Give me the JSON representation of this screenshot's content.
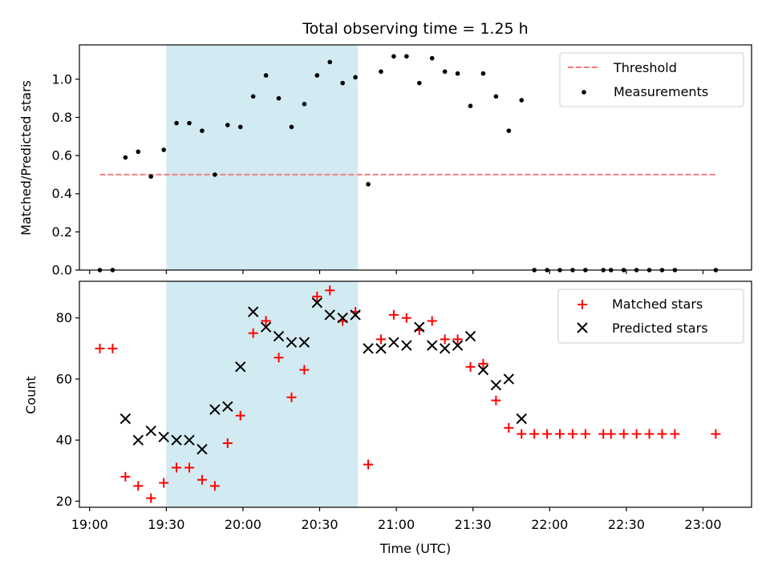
{
  "chart_data": [
    {
      "type": "scatter",
      "title": "Total observing time = 1.25 h",
      "xlabel": "",
      "ylabel": "Matched/Predicted stars",
      "ylim": [
        0,
        1.18
      ],
      "xlim": [
        "18:56",
        "23:19"
      ],
      "yticks": [
        "0.0",
        "0.2",
        "0.4",
        "0.6",
        "0.8",
        "1.0"
      ],
      "shaded_span": {
        "start": "19:30",
        "end": "20:45",
        "color": "#add8e6"
      },
      "threshold": {
        "name": "Threshold",
        "value": 0.5,
        "from": "19:04",
        "to": "23:05",
        "color": "#f08080",
        "style": "dashed"
      },
      "series": [
        {
          "name": "Measurements",
          "marker": "dot",
          "color": "#000000",
          "points": [
            [
              "19:04",
              0.0
            ],
            [
              "19:09",
              0.0
            ],
            [
              "19:14",
              0.59
            ],
            [
              "19:19",
              0.62
            ],
            [
              "19:24",
              0.49
            ],
            [
              "19:29",
              0.63
            ],
            [
              "19:34",
              0.77
            ],
            [
              "19:39",
              0.77
            ],
            [
              "19:44",
              0.73
            ],
            [
              "19:49",
              0.5
            ],
            [
              "19:54",
              0.76
            ],
            [
              "19:59",
              0.75
            ],
            [
              "20:04",
              0.91
            ],
            [
              "20:09",
              1.02
            ],
            [
              "20:14",
              0.9
            ],
            [
              "20:19",
              0.75
            ],
            [
              "20:24",
              0.87
            ],
            [
              "20:29",
              1.02
            ],
            [
              "20:34",
              1.09
            ],
            [
              "20:39",
              0.98
            ],
            [
              "20:44",
              1.01
            ],
            [
              "20:49",
              0.45
            ],
            [
              "20:54",
              1.04
            ],
            [
              "20:59",
              1.12
            ],
            [
              "21:04",
              1.12
            ],
            [
              "21:09",
              0.98
            ],
            [
              "21:14",
              1.11
            ],
            [
              "21:19",
              1.04
            ],
            [
              "21:24",
              1.03
            ],
            [
              "21:29",
              0.86
            ],
            [
              "21:34",
              1.03
            ],
            [
              "21:39",
              0.91
            ],
            [
              "21:44",
              0.73
            ],
            [
              "21:49",
              0.89
            ],
            [
              "21:54",
              0.0
            ],
            [
              "21:59",
              0.0
            ],
            [
              "22:04",
              0.0
            ],
            [
              "22:09",
              0.0
            ],
            [
              "22:14",
              0.0
            ],
            [
              "22:21",
              0.0
            ],
            [
              "22:24",
              0.0
            ],
            [
              "22:29",
              0.0
            ],
            [
              "22:34",
              0.0
            ],
            [
              "22:39",
              0.0
            ],
            [
              "22:44",
              0.0
            ],
            [
              "22:49",
              0.0
            ],
            [
              "23:05",
              0.0
            ]
          ]
        }
      ],
      "legend": {
        "placement": "upper right",
        "entries": [
          "Threshold",
          "Measurements"
        ]
      }
    },
    {
      "type": "scatter",
      "title": "",
      "xlabel": "Time (UTC)",
      "ylabel": "Count",
      "ylim": [
        18,
        92
      ],
      "xlim": [
        "18:56",
        "23:19"
      ],
      "yticks": [
        "20",
        "40",
        "60",
        "80"
      ],
      "xticks": [
        "19:00",
        "19:30",
        "20:00",
        "20:30",
        "21:00",
        "21:30",
        "22:00",
        "22:30",
        "23:00"
      ],
      "shaded_span": {
        "start": "19:30",
        "end": "20:45",
        "color": "#add8e6"
      },
      "series": [
        {
          "name": "Matched stars",
          "marker": "plus",
          "color": "#ff0000",
          "points": [
            [
              "19:04",
              70
            ],
            [
              "19:09",
              70
            ],
            [
              "19:14",
              28
            ],
            [
              "19:19",
              25
            ],
            [
              "19:24",
              21
            ],
            [
              "19:29",
              26
            ],
            [
              "19:34",
              31
            ],
            [
              "19:39",
              31
            ],
            [
              "19:44",
              27
            ],
            [
              "19:49",
              25
            ],
            [
              "19:54",
              39
            ],
            [
              "19:59",
              48
            ],
            [
              "20:04",
              75
            ],
            [
              "20:09",
              79
            ],
            [
              "20:14",
              67
            ],
            [
              "20:19",
              54
            ],
            [
              "20:24",
              63
            ],
            [
              "20:29",
              87
            ],
            [
              "20:34",
              89
            ],
            [
              "20:39",
              79
            ],
            [
              "20:44",
              82
            ],
            [
              "20:49",
              32
            ],
            [
              "20:54",
              73
            ],
            [
              "20:59",
              81
            ],
            [
              "21:04",
              80
            ],
            [
              "21:09",
              76
            ],
            [
              "21:14",
              79
            ],
            [
              "21:19",
              73
            ],
            [
              "21:24",
              73
            ],
            [
              "21:29",
              64
            ],
            [
              "21:34",
              65
            ],
            [
              "21:39",
              53
            ],
            [
              "21:44",
              44
            ],
            [
              "21:49",
              42
            ],
            [
              "21:54",
              42
            ],
            [
              "21:59",
              42
            ],
            [
              "22:04",
              42
            ],
            [
              "22:09",
              42
            ],
            [
              "22:14",
              42
            ],
            [
              "22:21",
              42
            ],
            [
              "22:24",
              42
            ],
            [
              "22:29",
              42
            ],
            [
              "22:34",
              42
            ],
            [
              "22:39",
              42
            ],
            [
              "22:44",
              42
            ],
            [
              "22:49",
              42
            ],
            [
              "23:05",
              42
            ]
          ]
        },
        {
          "name": "Predicted stars",
          "marker": "x",
          "color": "#000000",
          "points": [
            [
              "19:14",
              47
            ],
            [
              "19:19",
              40
            ],
            [
              "19:24",
              43
            ],
            [
              "19:29",
              41
            ],
            [
              "19:34",
              40
            ],
            [
              "19:39",
              40
            ],
            [
              "19:44",
              37
            ],
            [
              "19:49",
              50
            ],
            [
              "19:54",
              51
            ],
            [
              "19:59",
              64
            ],
            [
              "20:04",
              82
            ],
            [
              "20:09",
              77
            ],
            [
              "20:14",
              74
            ],
            [
              "20:19",
              72
            ],
            [
              "20:24",
              72
            ],
            [
              "20:29",
              85
            ],
            [
              "20:34",
              81
            ],
            [
              "20:39",
              80
            ],
            [
              "20:44",
              81
            ],
            [
              "20:49",
              70
            ],
            [
              "20:54",
              70
            ],
            [
              "20:59",
              72
            ],
            [
              "21:04",
              71
            ],
            [
              "21:09",
              77
            ],
            [
              "21:14",
              71
            ],
            [
              "21:19",
              70
            ],
            [
              "21:24",
              71
            ],
            [
              "21:29",
              74
            ],
            [
              "21:34",
              63
            ],
            [
              "21:39",
              58
            ],
            [
              "21:44",
              60
            ],
            [
              "21:49",
              47
            ]
          ]
        }
      ],
      "legend": {
        "placement": "upper right",
        "entries": [
          "Matched stars",
          "Predicted stars"
        ]
      }
    }
  ]
}
